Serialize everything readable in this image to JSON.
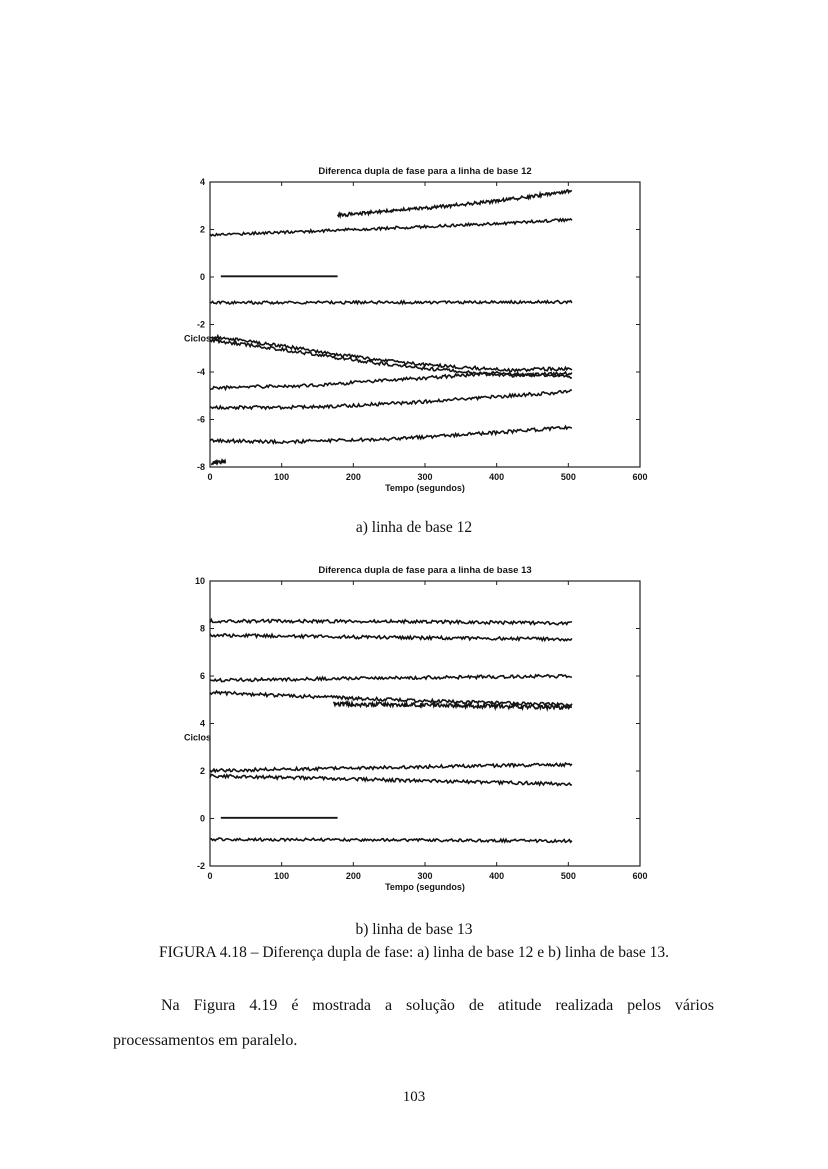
{
  "page": {
    "number": "103"
  },
  "captions": {
    "a": "a) linha de base 12",
    "b": "b) linha de base 13",
    "figure": "FIGURA 4.18 – Diferença dupla de fase: a) linha de base 12 e b) linha de base 13."
  },
  "paragraph": {
    "line1": "Na Figura 4.19 é mostrada a solução de atitude realizada pelos vários",
    "line2": "processamentos em paralelo."
  },
  "colors": {
    "trace": "#141414",
    "axis": "#222222",
    "page_bg": "#ffffff"
  },
  "chart_data": [
    {
      "type": "line",
      "title": "Diferenca dupla de fase para a linha de base 12",
      "xlabel": "Tempo (segundos)",
      "ylabel": "Ciclos",
      "xlim": [
        0,
        600
      ],
      "ylim": [
        -8,
        4
      ],
      "xticks": [
        0,
        100,
        200,
        300,
        400,
        500,
        600
      ],
      "yticks": [
        -8,
        -6,
        -4,
        -2,
        0,
        2,
        4
      ],
      "grid": false,
      "legend": null,
      "series": [
        {
          "name": "trace-1",
          "noise": 0.06,
          "solid": false,
          "points": [
            [
              0,
              1.78
            ],
            [
              100,
              1.88
            ],
            [
              200,
              2.0
            ],
            [
              300,
              2.12
            ],
            [
              400,
              2.25
            ],
            [
              505,
              2.42
            ]
          ]
        },
        {
          "name": "trace-2",
          "noise": 0.07,
          "solid": false,
          "points": [
            [
              178,
              2.6
            ],
            [
              250,
              2.78
            ],
            [
              300,
              2.9
            ],
            [
              400,
              3.2
            ],
            [
              450,
              3.4
            ],
            [
              505,
              3.62
            ]
          ]
        },
        {
          "name": "trace-3-reference-line",
          "noise": 0,
          "solid": true,
          "points": [
            [
              15,
              0.03
            ],
            [
              178,
              0.03
            ]
          ]
        },
        {
          "name": "trace-4",
          "noise": 0.06,
          "solid": false,
          "points": [
            [
              0,
              -1.08
            ],
            [
              250,
              -1.07
            ],
            [
              505,
              -1.05
            ]
          ]
        },
        {
          "name": "trace-5",
          "noise": 0.07,
          "solid": false,
          "points": [
            [
              0,
              -2.5
            ],
            [
              100,
              -2.9
            ],
            [
              200,
              -3.35
            ],
            [
              300,
              -3.7
            ],
            [
              420,
              -3.92
            ],
            [
              505,
              -3.85
            ]
          ]
        },
        {
          "name": "trace-6",
          "noise": 0.07,
          "solid": false,
          "points": [
            [
              0,
              -2.65
            ],
            [
              100,
              -3.05
            ],
            [
              200,
              -3.5
            ],
            [
              300,
              -3.85
            ],
            [
              420,
              -4.15
            ],
            [
              505,
              -4.05
            ]
          ]
        },
        {
          "name": "trace-7",
          "noise": 0.07,
          "solid": false,
          "points": [
            [
              0,
              -4.68
            ],
            [
              150,
              -4.55
            ],
            [
              300,
              -4.25
            ],
            [
              400,
              -4.05
            ],
            [
              505,
              -4.2
            ]
          ]
        },
        {
          "name": "trace-8",
          "noise": 0.07,
          "solid": false,
          "points": [
            [
              0,
              -5.5
            ],
            [
              150,
              -5.48
            ],
            [
              300,
              -5.25
            ],
            [
              420,
              -5.0
            ],
            [
              505,
              -4.82
            ]
          ]
        },
        {
          "name": "trace-9",
          "noise": 0.07,
          "solid": false,
          "points": [
            [
              0,
              -6.88
            ],
            [
              100,
              -6.95
            ],
            [
              250,
              -6.82
            ],
            [
              400,
              -6.55
            ],
            [
              505,
              -6.32
            ]
          ]
        },
        {
          "name": "trace-10-stub",
          "noise": 0.08,
          "solid": false,
          "points": [
            [
              2,
              -7.82
            ],
            [
              22,
              -7.75
            ]
          ]
        }
      ]
    },
    {
      "type": "line",
      "title": "Diferenca dupla de fase para a linha de base 13",
      "xlabel": "Tempo (segundos)",
      "ylabel": "Ciclos",
      "xlim": [
        0,
        600
      ],
      "ylim": [
        -2,
        10
      ],
      "xticks": [
        0,
        100,
        200,
        300,
        400,
        500,
        600
      ],
      "yticks": [
        -2,
        0,
        2,
        4,
        6,
        8,
        10
      ],
      "grid": false,
      "legend": null,
      "series": [
        {
          "name": "trace-1",
          "noise": 0.07,
          "solid": false,
          "points": [
            [
              0,
              8.32
            ],
            [
              250,
              8.3
            ],
            [
              505,
              8.22
            ]
          ]
        },
        {
          "name": "trace-2",
          "noise": 0.07,
          "solid": false,
          "points": [
            [
              0,
              7.72
            ],
            [
              250,
              7.62
            ],
            [
              505,
              7.55
            ]
          ]
        },
        {
          "name": "trace-3",
          "noise": 0.07,
          "solid": false,
          "points": [
            [
              0,
              5.82
            ],
            [
              250,
              5.92
            ],
            [
              505,
              6.0
            ]
          ]
        },
        {
          "name": "trace-4",
          "noise": 0.07,
          "solid": false,
          "points": [
            [
              0,
              5.3
            ],
            [
              150,
              5.12
            ],
            [
              300,
              4.95
            ],
            [
              505,
              4.78
            ]
          ]
        },
        {
          "name": "trace-5",
          "noise": 0.09,
          "solid": false,
          "points": [
            [
              172,
              4.82
            ],
            [
              300,
              4.78
            ],
            [
              505,
              4.68
            ]
          ]
        },
        {
          "name": "trace-6",
          "noise": 0.07,
          "solid": false,
          "points": [
            [
              0,
              2.02
            ],
            [
              250,
              2.15
            ],
            [
              505,
              2.28
            ]
          ]
        },
        {
          "name": "trace-7",
          "noise": 0.07,
          "solid": false,
          "points": [
            [
              0,
              1.8
            ],
            [
              250,
              1.62
            ],
            [
              505,
              1.45
            ]
          ]
        },
        {
          "name": "trace-8-reference-line",
          "noise": 0,
          "solid": true,
          "points": [
            [
              15,
              0.03
            ],
            [
              178,
              0.03
            ]
          ]
        },
        {
          "name": "trace-9",
          "noise": 0.06,
          "solid": false,
          "points": [
            [
              0,
              -0.88
            ],
            [
              250,
              -0.9
            ],
            [
              505,
              -0.95
            ]
          ]
        }
      ]
    }
  ]
}
